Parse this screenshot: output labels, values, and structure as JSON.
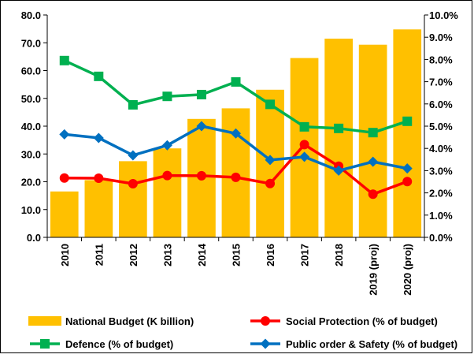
{
  "chart_data": {
    "type": "bar",
    "title": "",
    "xlabel": "",
    "ylabel": "",
    "y2label": "",
    "categories": [
      "2010",
      "2011",
      "2012",
      "2013",
      "2014",
      "2015",
      "2016",
      "2017",
      "2018",
      "2019 (proj)",
      "2020 (proj)"
    ],
    "left_axis": {
      "min": 0,
      "max": 80,
      "step": 10,
      "tick_labels": [
        "0.0",
        "10.0",
        "20.0",
        "30.0",
        "40.0",
        "50.0",
        "60.0",
        "70.0",
        "80.0"
      ]
    },
    "right_axis": {
      "min": 0,
      "max": 10,
      "step": 1,
      "tick_labels": [
        "0.0%",
        "1.0%",
        "2.0%",
        "3.0%",
        "4.0%",
        "5.0%",
        "6.0%",
        "7.0%",
        "8.0%",
        "9.0%",
        "10.0%"
      ]
    },
    "grid": false,
    "legend_position": "bottom",
    "series": [
      {
        "name": "National Budget (K billion)",
        "type": "bar",
        "axis": "left",
        "color": "#FFC000",
        "values": [
          16.5,
          20.6,
          27.4,
          32.0,
          42.6,
          46.4,
          53.1,
          64.5,
          71.5,
          69.3,
          74.8
        ]
      },
      {
        "name": "Social Protection (% of budget)",
        "type": "line",
        "axis": "right",
        "color": "#FF0000",
        "marker": "circle",
        "values": [
          2.67,
          2.66,
          2.41,
          2.78,
          2.77,
          2.7,
          2.42,
          4.17,
          3.2,
          1.94,
          2.51
        ]
      },
      {
        "name": "Defence (% of budget)",
        "type": "line",
        "axis": "right",
        "color": "#00B050",
        "marker": "square",
        "values": [
          7.95,
          7.24,
          5.96,
          6.34,
          6.42,
          6.99,
          5.98,
          4.97,
          4.9,
          4.71,
          5.22
        ]
      },
      {
        "name": "Public order & Safety (% of budget)",
        "type": "line",
        "axis": "right",
        "color": "#0070C0",
        "marker": "diamond",
        "values": [
          4.63,
          4.47,
          3.69,
          4.14,
          5.0,
          4.67,
          3.48,
          3.62,
          3.0,
          3.4,
          3.1
        ]
      }
    ]
  }
}
